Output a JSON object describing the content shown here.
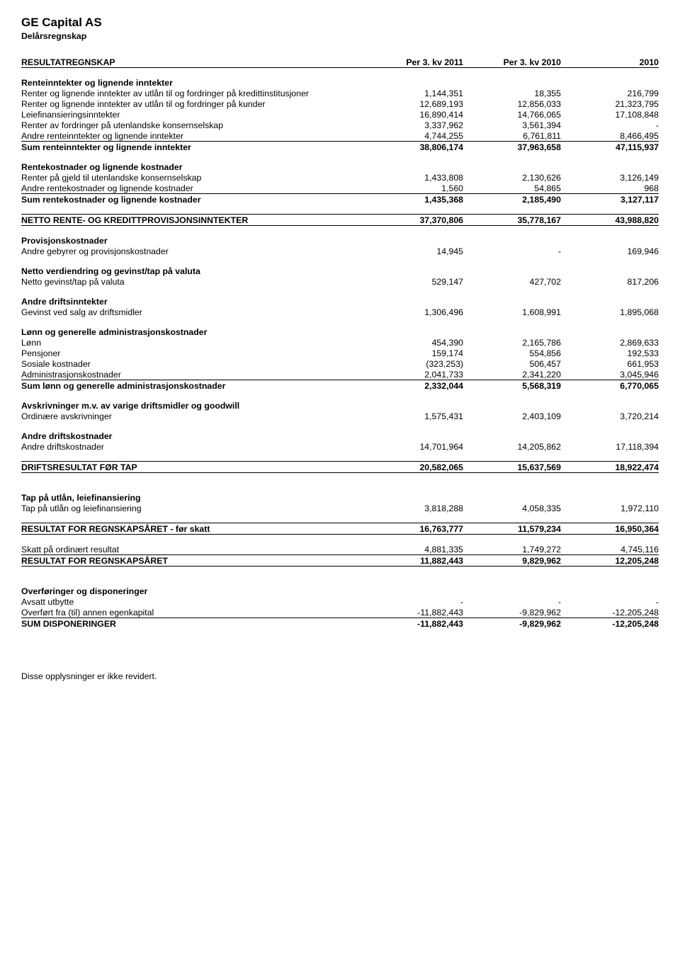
{
  "company": "GE Capital AS",
  "subtitle": "Delårsregnskap",
  "headers": {
    "title": "RESULTATREGNSKAP",
    "col1": "Per 3. kv 2011",
    "col2": "Per 3. kv 2010",
    "col3": "2010"
  },
  "sections": [
    {
      "title": "Renteinntekter og lignende inntekter",
      "rows": [
        {
          "label": "Renter og lignende inntekter av utlån til og fordringer på kredittinstitusjoner",
          "v": [
            "1,144,351",
            "18,355",
            "216,799"
          ]
        },
        {
          "label": "Renter og lignende inntekter av utlån til og fordringer på kunder",
          "v": [
            "12,689,193",
            "12,856,033",
            "21,323,795"
          ]
        },
        {
          "label": "Leiefinansieringsinntekter",
          "v": [
            "16,890,414",
            "14,766,065",
            "17,108,848"
          ]
        },
        {
          "label": "Renter av fordringer på utenlandske konsernselskap",
          "v": [
            "3,337,962",
            "3,561,394",
            "-"
          ]
        },
        {
          "label": "Andre renteinntekter og lignende inntekter",
          "v": [
            "4,744,255",
            "6,761,811",
            "8,466,495"
          ],
          "borderBottom": true
        }
      ],
      "sum": {
        "label": "Sum renteinntekter og lignende inntekter",
        "v": [
          "38,806,174",
          "37,963,658",
          "47,115,937"
        ]
      }
    },
    {
      "title": "Rentekostnader og lignende kostnader",
      "rows": [
        {
          "label": "Renter på gjeld til utenlandske konsernselskap",
          "v": [
            "1,433,808",
            "2,130,626",
            "3,126,149"
          ]
        },
        {
          "label": "Andre rentekostnader og lignende kostnader",
          "v": [
            "1,560",
            "54,865",
            "968"
          ],
          "borderBottom": true
        }
      ],
      "sum": {
        "label": "Sum rentekostnader og lignende kostnader",
        "v": [
          "1,435,368",
          "2,185,490",
          "3,127,117"
        ]
      }
    }
  ],
  "netto_line": {
    "label": "NETTO RENTE- OG KREDITTPROVISJONSINNTEKTER",
    "v": [
      "37,370,806",
      "35,778,167",
      "43,988,820"
    ]
  },
  "blocks": [
    {
      "title": "Provisjonskostnader",
      "rows": [
        {
          "label": "Andre gebyrer og provisjonskostnader",
          "v": [
            "14,945",
            "-",
            "169,946"
          ]
        }
      ]
    },
    {
      "title": "Netto verdiendring og gevinst/tap på valuta",
      "rows": [
        {
          "label": "Netto gevinst/tap på valuta",
          "v": [
            "529,147",
            "427,702",
            "817,206"
          ]
        }
      ]
    },
    {
      "title": "Andre driftsinntekter",
      "rows": [
        {
          "label": "Gevinst ved salg av driftsmidler",
          "v": [
            "1,306,496",
            "1,608,991",
            "1,895,068"
          ]
        }
      ]
    },
    {
      "title": "Lønn og generelle administrasjonskostnader",
      "rows": [
        {
          "label": "Lønn",
          "v": [
            "454,390",
            "2,165,786",
            "2,869,633"
          ]
        },
        {
          "label": "Pensjoner",
          "v": [
            "159,174",
            "554,856",
            "192,533"
          ]
        },
        {
          "label": "Sosiale kostnader",
          "v": [
            "(323,253)",
            "506,457",
            "661,953"
          ]
        },
        {
          "label": "Administrasjonskostnader",
          "v": [
            "2,041,733",
            "2,341,220",
            "3,045,946"
          ],
          "borderBottom": true
        }
      ],
      "sum": {
        "label": "Sum lønn og generelle administrasjonskostnader",
        "v": [
          "2,332,044",
          "5,568,319",
          "6,770,065"
        ]
      }
    },
    {
      "title": "Avskrivninger m.v. av varige driftsmidler og goodwill",
      "rows": [
        {
          "label": "Ordinære avskrivninger",
          "v": [
            "1,575,431",
            "2,403,109",
            "3,720,214"
          ]
        }
      ]
    },
    {
      "title": "Andre driftskostnader",
      "rows": [
        {
          "label": "Andre driftskostnader",
          "v": [
            "14,701,964",
            "14,205,862",
            "17,118,394"
          ]
        }
      ]
    }
  ],
  "drifts_line": {
    "label": "DRIFTSRESULTAT FØR TAP",
    "v": [
      "20,582,065",
      "15,637,569",
      "18,922,474"
    ]
  },
  "blocks2": [
    {
      "title": "Tap på utlån, leiefinansiering",
      "rows": [
        {
          "label": "Tap på utlån og leiefinansiering",
          "v": [
            "3,818,288",
            "4,058,335",
            "1,972,110"
          ]
        }
      ]
    }
  ],
  "result_before_tax": {
    "label": "RESULTAT FOR REGNSKAPSÅRET - før skatt",
    "v": [
      "16,763,777",
      "11,579,234",
      "16,950,364"
    ]
  },
  "tax_row": {
    "label": "Skatt på ordinært resultat",
    "v": [
      "4,881,335",
      "1,749,272",
      "4,745,116"
    ]
  },
  "result_final": {
    "label": "RESULTAT FOR REGNSKAPSÅRET",
    "v": [
      "11,882,443",
      "9,829,962",
      "12,205,248"
    ]
  },
  "disp_title": "Overføringer og disponeringer",
  "disp_rows": [
    {
      "label": "Avsatt utbytte",
      "v": [
        "-",
        "-",
        "-"
      ]
    },
    {
      "label": "Overført fra (til) annen egenkapital",
      "v": [
        "-11,882,443",
        "-9,829,962",
        "-12,205,248"
      ],
      "borderBottom": true
    }
  ],
  "disp_sum": {
    "label": "SUM DISPONERINGER",
    "v": [
      "-11,882,443",
      "-9,829,962",
      "-12,205,248"
    ]
  },
  "footer": "Disse opplysninger er ikke revidert."
}
